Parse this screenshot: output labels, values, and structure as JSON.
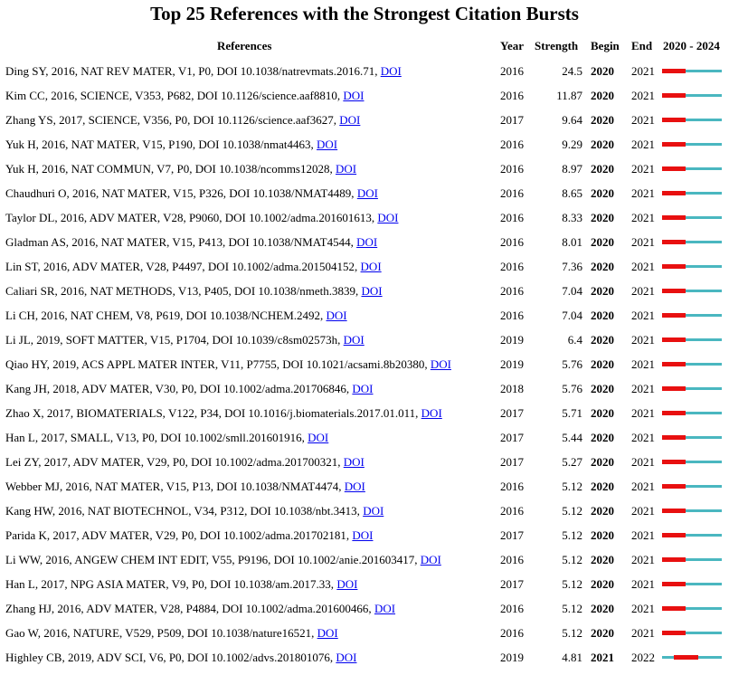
{
  "title": "Top 25 References with the Strongest Citation Bursts",
  "headers": {
    "references": "References",
    "year": "Year",
    "strength": "Strength",
    "begin": "Begin",
    "end": "End",
    "range": "2020 - 2024"
  },
  "timeline": {
    "start": 2020,
    "end": 2024
  },
  "colors": {
    "burst": "#e81010",
    "baseline": "#4ab7c0",
    "link": "#0000ee"
  },
  "rows": [
    {
      "text": "Ding SY, 2016, NAT REV MATER, V1, P0, DOI 10.1038/natrevmats.2016.71, ",
      "link": "DOI",
      "year": "2016",
      "strength": "24.5",
      "begin": "2020",
      "end": "2021"
    },
    {
      "text": "Kim CC, 2016, SCIENCE, V353, P682, DOI 10.1126/science.aaf8810, ",
      "link": "DOI",
      "year": "2016",
      "strength": "11.87",
      "begin": "2020",
      "end": "2021"
    },
    {
      "text": "Zhang YS, 2017, SCIENCE, V356, P0, DOI 10.1126/science.aaf3627, ",
      "link": "DOI",
      "year": "2017",
      "strength": "9.64",
      "begin": "2020",
      "end": "2021"
    },
    {
      "text": "Yuk H, 2016, NAT MATER, V15, P190, DOI 10.1038/nmat4463, ",
      "link": "DOI",
      "year": "2016",
      "strength": "9.29",
      "begin": "2020",
      "end": "2021"
    },
    {
      "text": "Yuk H, 2016, NAT COMMUN, V7, P0, DOI 10.1038/ncomms12028, ",
      "link": "DOI",
      "year": "2016",
      "strength": "8.97",
      "begin": "2020",
      "end": "2021"
    },
    {
      "text": "Chaudhuri O, 2016, NAT MATER, V15, P326, DOI 10.1038/NMAT4489, ",
      "link": "DOI",
      "year": "2016",
      "strength": "8.65",
      "begin": "2020",
      "end": "2021"
    },
    {
      "text": "Taylor DL, 2016, ADV MATER, V28, P9060, DOI 10.1002/adma.201601613, ",
      "link": "DOI",
      "year": "2016",
      "strength": "8.33",
      "begin": "2020",
      "end": "2021"
    },
    {
      "text": "Gladman AS, 2016, NAT MATER, V15, P413, DOI 10.1038/NMAT4544, ",
      "link": "DOI",
      "year": "2016",
      "strength": "8.01",
      "begin": "2020",
      "end": "2021"
    },
    {
      "text": "Lin ST, 2016, ADV MATER, V28, P4497, DOI 10.1002/adma.201504152, ",
      "link": "DOI",
      "year": "2016",
      "strength": "7.36",
      "begin": "2020",
      "end": "2021"
    },
    {
      "text": "Caliari SR, 2016, NAT METHODS, V13, P405, DOI 10.1038/nmeth.3839, ",
      "link": "DOI",
      "year": "2016",
      "strength": "7.04",
      "begin": "2020",
      "end": "2021"
    },
    {
      "text": "Li CH, 2016, NAT CHEM, V8, P619, DOI 10.1038/NCHEM.2492, ",
      "link": "DOI",
      "year": "2016",
      "strength": "7.04",
      "begin": "2020",
      "end": "2021"
    },
    {
      "text": "Li JL, 2019, SOFT MATTER, V15, P1704, DOI 10.1039/c8sm02573h, ",
      "link": "DOI",
      "year": "2019",
      "strength": "6.4",
      "begin": "2020",
      "end": "2021"
    },
    {
      "text": "Qiao HY, 2019, ACS APPL MATER INTER, V11, P7755, DOI 10.1021/acsami.8b20380, ",
      "link": "DOI",
      "year": "2019",
      "strength": "5.76",
      "begin": "2020",
      "end": "2021"
    },
    {
      "text": "Kang JH, 2018, ADV MATER, V30, P0, DOI 10.1002/adma.201706846, ",
      "link": "DOI",
      "year": "2018",
      "strength": "5.76",
      "begin": "2020",
      "end": "2021"
    },
    {
      "text": "Zhao X, 2017, BIOMATERIALS, V122, P34, DOI 10.1016/j.biomaterials.2017.01.011, ",
      "link": "DOI",
      "year": "2017",
      "strength": "5.71",
      "begin": "2020",
      "end": "2021"
    },
    {
      "text": "Han L, 2017, SMALL, V13, P0, DOI 10.1002/smll.201601916, ",
      "link": "DOI",
      "year": "2017",
      "strength": "5.44",
      "begin": "2020",
      "end": "2021"
    },
    {
      "text": "Lei ZY, 2017, ADV MATER, V29, P0, DOI 10.1002/adma.201700321, ",
      "link": "DOI",
      "year": "2017",
      "strength": "5.27",
      "begin": "2020",
      "end": "2021"
    },
    {
      "text": "Webber MJ, 2016, NAT MATER, V15, P13, DOI 10.1038/NMAT4474, ",
      "link": "DOI",
      "year": "2016",
      "strength": "5.12",
      "begin": "2020",
      "end": "2021"
    },
    {
      "text": "Kang HW, 2016, NAT BIOTECHNOL, V34, P312, DOI 10.1038/nbt.3413, ",
      "link": "DOI",
      "year": "2016",
      "strength": "5.12",
      "begin": "2020",
      "end": "2021"
    },
    {
      "text": "Parida K, 2017, ADV MATER, V29, P0, DOI 10.1002/adma.201702181, ",
      "link": "DOI",
      "year": "2017",
      "strength": "5.12",
      "begin": "2020",
      "end": "2021"
    },
    {
      "text": "Li WW, 2016, ANGEW CHEM INT EDIT, V55, P9196, DOI 10.1002/anie.201603417, ",
      "link": "DOI",
      "year": "2016",
      "strength": "5.12",
      "begin": "2020",
      "end": "2021"
    },
    {
      "text": "Han L, 2017, NPG ASIA MATER, V9, P0, DOI 10.1038/am.2017.33, ",
      "link": "DOI",
      "year": "2017",
      "strength": "5.12",
      "begin": "2020",
      "end": "2021"
    },
    {
      "text": "Zhang HJ, 2016, ADV MATER, V28, P4884, DOI 10.1002/adma.201600466, ",
      "link": "DOI",
      "year": "2016",
      "strength": "5.12",
      "begin": "2020",
      "end": "2021"
    },
    {
      "text": "Gao W, 2016, NATURE, V529, P509, DOI 10.1038/nature16521, ",
      "link": "DOI",
      "year": "2016",
      "strength": "5.12",
      "begin": "2020",
      "end": "2021"
    },
    {
      "text": "Highley CB, 2019, ADV SCI, V6, P0, DOI 10.1002/advs.201801076, ",
      "link": "DOI",
      "year": "2019",
      "strength": "4.81",
      "begin": "2021",
      "end": "2022"
    }
  ]
}
